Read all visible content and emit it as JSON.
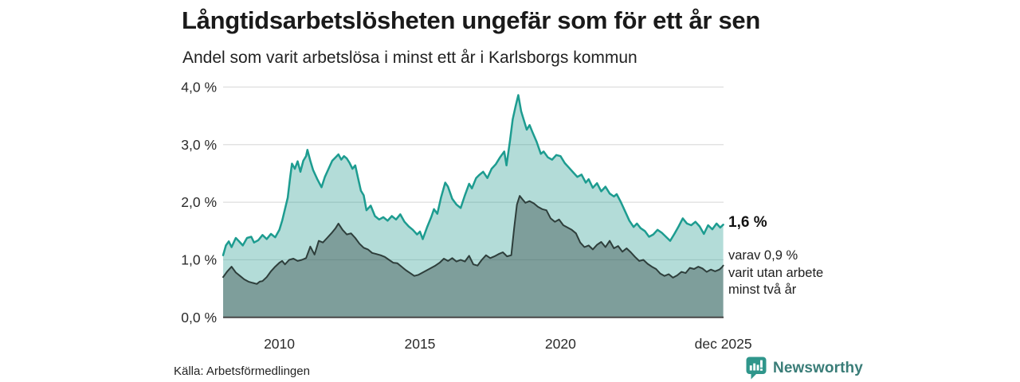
{
  "header": {
    "title": "Långtidsarbetslösheten ungefär som för ett år sen",
    "subtitle": "Andel som varit arbetslösa i minst ett år i Karlsborgs kommun"
  },
  "annotations": {
    "latest_total": "1,6 %",
    "latest_two_year_line1": "varav 0,9 %",
    "latest_two_year_line2": "varit utan arbete",
    "latest_two_year_line3": "minst två år"
  },
  "footer": {
    "source": "Källa: Arbetsförmedlingen",
    "logo_text": "Newsworthy"
  },
  "colors": {
    "accent_teal": "#1d9c90",
    "teal_fill": "rgba(38,156,144,0.35)",
    "dark_stroke": "#2e3e3b",
    "dark_fill": "rgba(40,58,55,0.38)",
    "grid": "#dedede",
    "baseline": "#474747",
    "logo_icon": "#2f968b",
    "logo_text": "#3a7d78"
  },
  "chart_data": {
    "type": "area",
    "title": "Långtidsarbetslösheten ungefär som för ett år sen",
    "subtitle": "Andel som varit arbetslösa i minst ett år i Karlsborgs kommun",
    "xlabel": "",
    "ylabel": "",
    "xlim": [
      2008.0,
      2025.8
    ],
    "ylim": [
      0,
      4
    ],
    "grid": "horizontal",
    "legend": "none",
    "y_ticks": [
      {
        "label": "0,0 %",
        "value": 0
      },
      {
        "label": "1,0 %",
        "value": 1
      },
      {
        "label": "2,0 %",
        "value": 2
      },
      {
        "label": "3,0 %",
        "value": 3
      },
      {
        "label": "4,0 %",
        "value": 4
      }
    ],
    "x_ticks": [
      {
        "label": "2010",
        "year": 2010
      },
      {
        "label": "2015",
        "year": 2015
      },
      {
        "label": "2020",
        "year": 2020
      },
      {
        "label": "dec 2025",
        "year": 2025.79
      }
    ],
    "series": [
      {
        "name": "arbetslosa_minst_ett_ar",
        "latest_label": "1,6 %",
        "stroke": "#1d9c90",
        "fill": "rgba(38,156,144,0.35)",
        "stroke_width": 2.5,
        "points": [
          [
            2008.0,
            1.08
          ],
          [
            2008.1,
            1.25
          ],
          [
            2008.2,
            1.32
          ],
          [
            2008.3,
            1.22
          ],
          [
            2008.45,
            1.38
          ],
          [
            2008.55,
            1.33
          ],
          [
            2008.7,
            1.25
          ],
          [
            2008.85,
            1.38
          ],
          [
            2009.0,
            1.4
          ],
          [
            2009.1,
            1.3
          ],
          [
            2009.25,
            1.34
          ],
          [
            2009.4,
            1.43
          ],
          [
            2009.55,
            1.36
          ],
          [
            2009.7,
            1.45
          ],
          [
            2009.85,
            1.39
          ],
          [
            2010.0,
            1.52
          ],
          [
            2010.1,
            1.68
          ],
          [
            2010.2,
            1.88
          ],
          [
            2010.3,
            2.08
          ],
          [
            2010.38,
            2.42
          ],
          [
            2010.45,
            2.67
          ],
          [
            2010.55,
            2.58
          ],
          [
            2010.65,
            2.71
          ],
          [
            2010.75,
            2.53
          ],
          [
            2010.85,
            2.72
          ],
          [
            2010.95,
            2.8
          ],
          [
            2011.0,
            2.91
          ],
          [
            2011.1,
            2.72
          ],
          [
            2011.2,
            2.56
          ],
          [
            2011.35,
            2.4
          ],
          [
            2011.5,
            2.26
          ],
          [
            2011.62,
            2.44
          ],
          [
            2011.75,
            2.58
          ],
          [
            2011.88,
            2.72
          ],
          [
            2012.0,
            2.78
          ],
          [
            2012.1,
            2.83
          ],
          [
            2012.2,
            2.74
          ],
          [
            2012.3,
            2.8
          ],
          [
            2012.4,
            2.76
          ],
          [
            2012.5,
            2.68
          ],
          [
            2012.6,
            2.58
          ],
          [
            2012.7,
            2.64
          ],
          [
            2012.8,
            2.42
          ],
          [
            2012.9,
            2.2
          ],
          [
            2013.0,
            2.12
          ],
          [
            2013.1,
            1.86
          ],
          [
            2013.25,
            1.94
          ],
          [
            2013.4,
            1.76
          ],
          [
            2013.55,
            1.7
          ],
          [
            2013.7,
            1.74
          ],
          [
            2013.85,
            1.68
          ],
          [
            2014.0,
            1.76
          ],
          [
            2014.15,
            1.7
          ],
          [
            2014.3,
            1.79
          ],
          [
            2014.45,
            1.66
          ],
          [
            2014.6,
            1.58
          ],
          [
            2014.75,
            1.52
          ],
          [
            2014.9,
            1.44
          ],
          [
            2015.0,
            1.49
          ],
          [
            2015.1,
            1.36
          ],
          [
            2015.25,
            1.56
          ],
          [
            2015.4,
            1.74
          ],
          [
            2015.5,
            1.88
          ],
          [
            2015.62,
            1.8
          ],
          [
            2015.75,
            2.08
          ],
          [
            2015.9,
            2.34
          ],
          [
            2016.0,
            2.27
          ],
          [
            2016.15,
            2.06
          ],
          [
            2016.3,
            1.96
          ],
          [
            2016.45,
            1.9
          ],
          [
            2016.6,
            2.12
          ],
          [
            2016.75,
            2.32
          ],
          [
            2016.85,
            2.24
          ],
          [
            2017.0,
            2.42
          ],
          [
            2017.1,
            2.47
          ],
          [
            2017.25,
            2.53
          ],
          [
            2017.4,
            2.42
          ],
          [
            2017.55,
            2.58
          ],
          [
            2017.7,
            2.66
          ],
          [
            2017.85,
            2.78
          ],
          [
            2018.0,
            2.88
          ],
          [
            2018.08,
            2.64
          ],
          [
            2018.2,
            3.06
          ],
          [
            2018.3,
            3.44
          ],
          [
            2018.4,
            3.66
          ],
          [
            2018.5,
            3.86
          ],
          [
            2018.6,
            3.58
          ],
          [
            2018.7,
            3.42
          ],
          [
            2018.8,
            3.26
          ],
          [
            2018.9,
            3.34
          ],
          [
            2019.0,
            3.22
          ],
          [
            2019.15,
            3.05
          ],
          [
            2019.3,
            2.84
          ],
          [
            2019.4,
            2.88
          ],
          [
            2019.55,
            2.78
          ],
          [
            2019.7,
            2.74
          ],
          [
            2019.85,
            2.82
          ],
          [
            2020.0,
            2.8
          ],
          [
            2020.15,
            2.68
          ],
          [
            2020.3,
            2.6
          ],
          [
            2020.45,
            2.52
          ],
          [
            2020.6,
            2.44
          ],
          [
            2020.75,
            2.48
          ],
          [
            2020.9,
            2.34
          ],
          [
            2021.0,
            2.4
          ],
          [
            2021.15,
            2.25
          ],
          [
            2021.3,
            2.33
          ],
          [
            2021.45,
            2.19
          ],
          [
            2021.6,
            2.27
          ],
          [
            2021.75,
            2.15
          ],
          [
            2021.9,
            2.1
          ],
          [
            2022.0,
            2.14
          ],
          [
            2022.15,
            2.0
          ],
          [
            2022.3,
            1.84
          ],
          [
            2022.45,
            1.68
          ],
          [
            2022.6,
            1.57
          ],
          [
            2022.72,
            1.63
          ],
          [
            2022.85,
            1.55
          ],
          [
            2023.0,
            1.5
          ],
          [
            2023.15,
            1.4
          ],
          [
            2023.3,
            1.44
          ],
          [
            2023.45,
            1.52
          ],
          [
            2023.6,
            1.47
          ],
          [
            2023.75,
            1.4
          ],
          [
            2023.9,
            1.33
          ],
          [
            2024.05,
            1.45
          ],
          [
            2024.2,
            1.58
          ],
          [
            2024.35,
            1.72
          ],
          [
            2024.5,
            1.63
          ],
          [
            2024.65,
            1.6
          ],
          [
            2024.8,
            1.66
          ],
          [
            2024.95,
            1.58
          ],
          [
            2025.1,
            1.45
          ],
          [
            2025.25,
            1.6
          ],
          [
            2025.4,
            1.53
          ],
          [
            2025.55,
            1.63
          ],
          [
            2025.68,
            1.56
          ],
          [
            2025.79,
            1.61
          ]
        ]
      },
      {
        "name": "utan_arbete_minst_tva_ar",
        "latest_label": "varav 0,9 % varit utan arbete minst två år",
        "stroke": "#2e3e3b",
        "fill": "rgba(40,58,55,0.38)",
        "stroke_width": 2,
        "points": [
          [
            2008.0,
            0.7
          ],
          [
            2008.15,
            0.8
          ],
          [
            2008.3,
            0.88
          ],
          [
            2008.45,
            0.78
          ],
          [
            2008.6,
            0.72
          ],
          [
            2008.75,
            0.66
          ],
          [
            2008.9,
            0.62
          ],
          [
            2009.05,
            0.6
          ],
          [
            2009.2,
            0.58
          ],
          [
            2009.3,
            0.62
          ],
          [
            2009.4,
            0.63
          ],
          [
            2009.55,
            0.7
          ],
          [
            2009.7,
            0.8
          ],
          [
            2009.85,
            0.88
          ],
          [
            2010.0,
            0.95
          ],
          [
            2010.1,
            0.98
          ],
          [
            2010.2,
            0.92
          ],
          [
            2010.35,
            1.0
          ],
          [
            2010.5,
            1.02
          ],
          [
            2010.65,
            0.98
          ],
          [
            2010.8,
            1.0
          ],
          [
            2010.95,
            1.03
          ],
          [
            2011.1,
            1.23
          ],
          [
            2011.25,
            1.09
          ],
          [
            2011.4,
            1.33
          ],
          [
            2011.55,
            1.3
          ],
          [
            2011.7,
            1.38
          ],
          [
            2011.85,
            1.46
          ],
          [
            2012.0,
            1.55
          ],
          [
            2012.1,
            1.63
          ],
          [
            2012.25,
            1.52
          ],
          [
            2012.4,
            1.44
          ],
          [
            2012.55,
            1.46
          ],
          [
            2012.7,
            1.38
          ],
          [
            2012.85,
            1.28
          ],
          [
            2013.0,
            1.21
          ],
          [
            2013.15,
            1.18
          ],
          [
            2013.3,
            1.12
          ],
          [
            2013.45,
            1.1
          ],
          [
            2013.6,
            1.08
          ],
          [
            2013.75,
            1.05
          ],
          [
            2013.9,
            1.0
          ],
          [
            2014.05,
            0.95
          ],
          [
            2014.2,
            0.94
          ],
          [
            2014.35,
            0.88
          ],
          [
            2014.5,
            0.82
          ],
          [
            2014.65,
            0.77
          ],
          [
            2014.8,
            0.72
          ],
          [
            2014.95,
            0.74
          ],
          [
            2015.1,
            0.78
          ],
          [
            2015.25,
            0.82
          ],
          [
            2015.4,
            0.86
          ],
          [
            2015.55,
            0.9
          ],
          [
            2015.7,
            0.95
          ],
          [
            2015.85,
            1.02
          ],
          [
            2016.0,
            0.98
          ],
          [
            2016.15,
            1.03
          ],
          [
            2016.3,
            0.97
          ],
          [
            2016.45,
            1.0
          ],
          [
            2016.6,
            0.97
          ],
          [
            2016.75,
            1.07
          ],
          [
            2016.9,
            0.92
          ],
          [
            2017.05,
            0.9
          ],
          [
            2017.2,
            1.0
          ],
          [
            2017.35,
            1.08
          ],
          [
            2017.5,
            1.03
          ],
          [
            2017.65,
            1.06
          ],
          [
            2017.8,
            1.1
          ],
          [
            2017.95,
            1.13
          ],
          [
            2018.1,
            1.06
          ],
          [
            2018.25,
            1.08
          ],
          [
            2018.35,
            1.55
          ],
          [
            2018.45,
            1.96
          ],
          [
            2018.55,
            2.11
          ],
          [
            2018.65,
            2.05
          ],
          [
            2018.75,
            1.99
          ],
          [
            2018.9,
            2.02
          ],
          [
            2019.05,
            1.98
          ],
          [
            2019.2,
            1.92
          ],
          [
            2019.35,
            1.88
          ],
          [
            2019.5,
            1.86
          ],
          [
            2019.65,
            1.72
          ],
          [
            2019.8,
            1.66
          ],
          [
            2019.95,
            1.7
          ],
          [
            2020.1,
            1.6
          ],
          [
            2020.25,
            1.56
          ],
          [
            2020.4,
            1.52
          ],
          [
            2020.55,
            1.46
          ],
          [
            2020.7,
            1.3
          ],
          [
            2020.85,
            1.22
          ],
          [
            2021.0,
            1.25
          ],
          [
            2021.15,
            1.18
          ],
          [
            2021.3,
            1.26
          ],
          [
            2021.45,
            1.31
          ],
          [
            2021.6,
            1.22
          ],
          [
            2021.75,
            1.33
          ],
          [
            2021.9,
            1.2
          ],
          [
            2022.05,
            1.24
          ],
          [
            2022.2,
            1.14
          ],
          [
            2022.35,
            1.2
          ],
          [
            2022.5,
            1.13
          ],
          [
            2022.65,
            1.05
          ],
          [
            2022.8,
            0.98
          ],
          [
            2022.95,
            1.0
          ],
          [
            2023.1,
            0.93
          ],
          [
            2023.25,
            0.88
          ],
          [
            2023.4,
            0.84
          ],
          [
            2023.55,
            0.76
          ],
          [
            2023.7,
            0.72
          ],
          [
            2023.85,
            0.75
          ],
          [
            2024.0,
            0.69
          ],
          [
            2024.15,
            0.73
          ],
          [
            2024.3,
            0.79
          ],
          [
            2024.45,
            0.77
          ],
          [
            2024.6,
            0.86
          ],
          [
            2024.75,
            0.84
          ],
          [
            2024.9,
            0.88
          ],
          [
            2025.05,
            0.85
          ],
          [
            2025.2,
            0.79
          ],
          [
            2025.35,
            0.83
          ],
          [
            2025.5,
            0.8
          ],
          [
            2025.65,
            0.83
          ],
          [
            2025.74,
            0.87
          ],
          [
            2025.79,
            0.9
          ]
        ]
      }
    ],
    "annotations": [
      "1,6 %",
      "varav 0,9 %",
      "varit utan arbete",
      "minst två år"
    ]
  }
}
